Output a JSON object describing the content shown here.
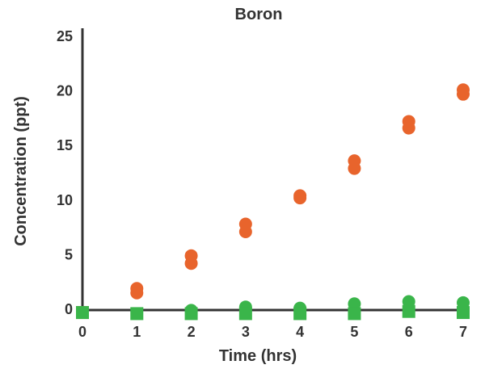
{
  "chart_data": {
    "type": "scatter",
    "title": "Boron",
    "xlabel": "Time (hrs)",
    "ylabel": "Concentration (ppt)",
    "xlim": [
      0,
      7
    ],
    "ylim": [
      0,
      25
    ],
    "x_ticks": [
      "0",
      "1",
      "2",
      "3",
      "4",
      "5",
      "6",
      "7"
    ],
    "y_ticks": [
      "0",
      "5",
      "10",
      "15",
      "20",
      "25"
    ],
    "grid": false,
    "legend": "none",
    "series": [
      {
        "color": "#e8642c",
        "marker": "circle",
        "points": [
          [
            1,
            1.9
          ],
          [
            1,
            1.5
          ],
          [
            2,
            4.9
          ],
          [
            2,
            4.2
          ],
          [
            3,
            7.8
          ],
          [
            3,
            7.1
          ],
          [
            4,
            10.4
          ],
          [
            4,
            10.2
          ],
          [
            5,
            13.6
          ],
          [
            5,
            12.9
          ],
          [
            6,
            17.2
          ],
          [
            6,
            16.6
          ],
          [
            7,
            20.1
          ],
          [
            7,
            19.7
          ]
        ]
      },
      {
        "color": "#e8642c",
        "marker": "square",
        "points": [
          [
            0,
            -0.3
          ]
        ]
      },
      {
        "color": "#3ab54a",
        "marker": "circle",
        "points": [
          [
            2,
            -0.1
          ],
          [
            3,
            0.2
          ],
          [
            4,
            0.1
          ],
          [
            5,
            0.5
          ],
          [
            6,
            0.7
          ],
          [
            7,
            0.6
          ]
        ]
      },
      {
        "color": "#3ab54a",
        "marker": "square",
        "points": [
          [
            0,
            -0.3
          ],
          [
            1,
            -0.4
          ],
          [
            2,
            -0.4
          ],
          [
            3,
            -0.4
          ],
          [
            4,
            -0.4
          ],
          [
            5,
            -0.4
          ],
          [
            6,
            -0.2
          ],
          [
            7,
            -0.3
          ]
        ]
      }
    ]
  }
}
